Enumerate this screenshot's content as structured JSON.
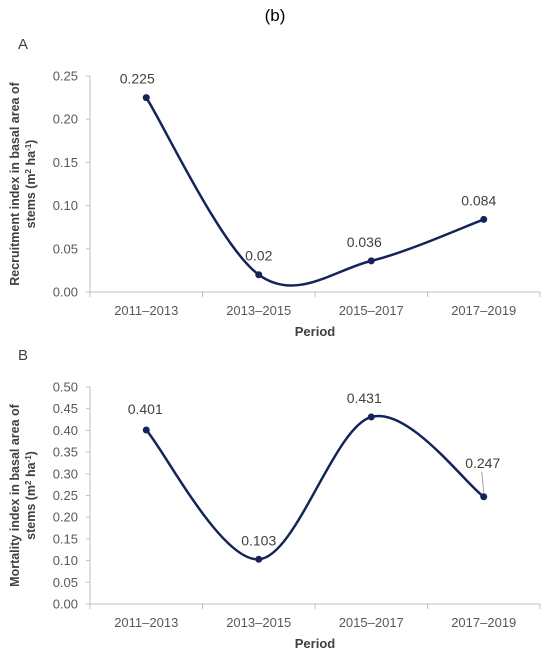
{
  "figure": {
    "title": "(b)"
  },
  "chart_data": [
    {
      "type": "line",
      "panel": "A",
      "categories": [
        "2011–2013",
        "2013–2015",
        "2015–2017",
        "2017–2019"
      ],
      "values": [
        0.225,
        0.02,
        0.036,
        0.084
      ],
      "data_labels": [
        "0.225",
        "0.02",
        "0.036",
        "0.084"
      ],
      "ylabel_line1": "Recruitment index in basal area of",
      "ylabel_line2": "stems",
      "ylabel_unit_m": "(m",
      "ylabel_unit_sup1": "2",
      "ylabel_unit_ha": " ha",
      "ylabel_unit_sup2": "-1",
      "ylabel_unit_close": ")",
      "xlabel": "Period",
      "ylim": [
        0,
        0.25
      ],
      "yticks": [
        "0.00",
        "0.05",
        "0.10",
        "0.15",
        "0.20",
        "0.25"
      ],
      "grid": false,
      "color": "#14245a",
      "smooth": true
    },
    {
      "type": "line",
      "panel": "B",
      "categories": [
        "2011–2013",
        "2013–2015",
        "2015–2017",
        "2017–2019"
      ],
      "values": [
        0.401,
        0.103,
        0.431,
        0.247
      ],
      "data_labels": [
        "0.401",
        "0.103",
        "0.431",
        "0.247"
      ],
      "ylabel_line1": "Mortality index in basal area of",
      "ylabel_line2": "stems",
      "ylabel_unit_m": "(m",
      "ylabel_unit_sup1": "2",
      "ylabel_unit_ha": " ha",
      "ylabel_unit_sup2": "-1",
      "ylabel_unit_close": ")",
      "xlabel": "Period",
      "ylim": [
        0,
        0.5
      ],
      "yticks": [
        "0.00",
        "0.05",
        "0.10",
        "0.15",
        "0.20",
        "0.25",
        "0.30",
        "0.35",
        "0.40",
        "0.45",
        "0.50"
      ],
      "grid": false,
      "color": "#14245a",
      "smooth": true
    }
  ]
}
